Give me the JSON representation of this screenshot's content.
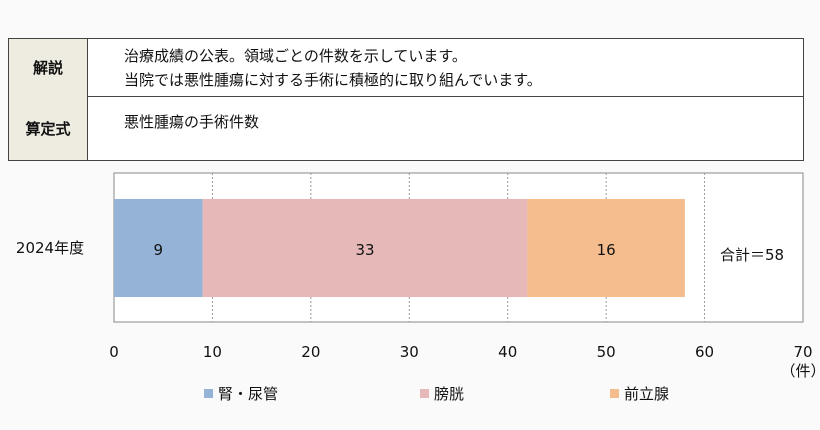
{
  "table": {
    "rows": [
      {
        "label": "解説",
        "lines": [
          "治療成績の公表。領域ごとの件数を示しています。",
          "当院では悪性腫瘍に対する手術に積極的に取り組んでいます。"
        ]
      },
      {
        "label": "算定式",
        "lines": [
          "悪性腫瘍の手術件数"
        ]
      }
    ]
  },
  "chart_data": {
    "type": "bar",
    "orientation": "horizontal-stacked",
    "categories": [
      "2024年度"
    ],
    "series": [
      {
        "name": "腎・尿管",
        "values": [
          9
        ],
        "color": "#95b3d7"
      },
      {
        "name": "膀胱",
        "values": [
          33
        ],
        "color": "#e6b9b8"
      },
      {
        "name": "前立腺",
        "values": [
          16
        ],
        "color": "#f5bd8e"
      }
    ],
    "total_label": "合計＝58",
    "xlim": [
      0,
      70
    ],
    "xticks": [
      0,
      10,
      20,
      30,
      40,
      50,
      60,
      70
    ],
    "xunit": "（件）",
    "grid": true,
    "legend": "bottom"
  }
}
